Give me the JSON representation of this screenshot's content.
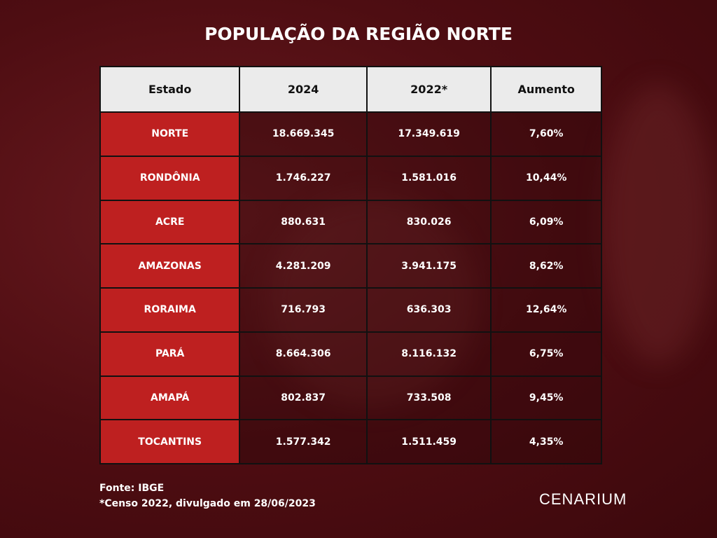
{
  "title": "POPULAÇÃO DA REGIÃO NORTE",
  "chart_data": {
    "type": "table",
    "columns": [
      "Estado",
      "2024",
      "2022*",
      "Aumento"
    ],
    "rows": [
      [
        "NORTE",
        "18.669.345",
        "17.349.619",
        "7,60%"
      ],
      [
        "RONDÔNIA",
        "1.746.227",
        "1.581.016",
        "10,44%"
      ],
      [
        "ACRE",
        "880.631",
        "830.026",
        "6,09%"
      ],
      [
        "AMAZONAS",
        "4.281.209",
        "3.941.175",
        "8,62%"
      ],
      [
        "RORAIMA",
        "716.793",
        "636.303",
        "12,64%"
      ],
      [
        "PARÁ",
        "8.664.306",
        "8.116.132",
        "6,75%"
      ],
      [
        "AMAPÁ",
        "802.837",
        "733.508",
        "9,45%"
      ],
      [
        "TOCANTINS",
        "1.577.342",
        "1.511.459",
        "4,35%"
      ]
    ]
  },
  "footer": {
    "source": "Fonte: IBGE",
    "note": "*Censo 2022, divulgado em 28/06/2023",
    "logo": "CENARIUM"
  },
  "colors": {
    "state_cell": "#be2020",
    "header": "#ebebeb",
    "background": "#4e0d12"
  }
}
